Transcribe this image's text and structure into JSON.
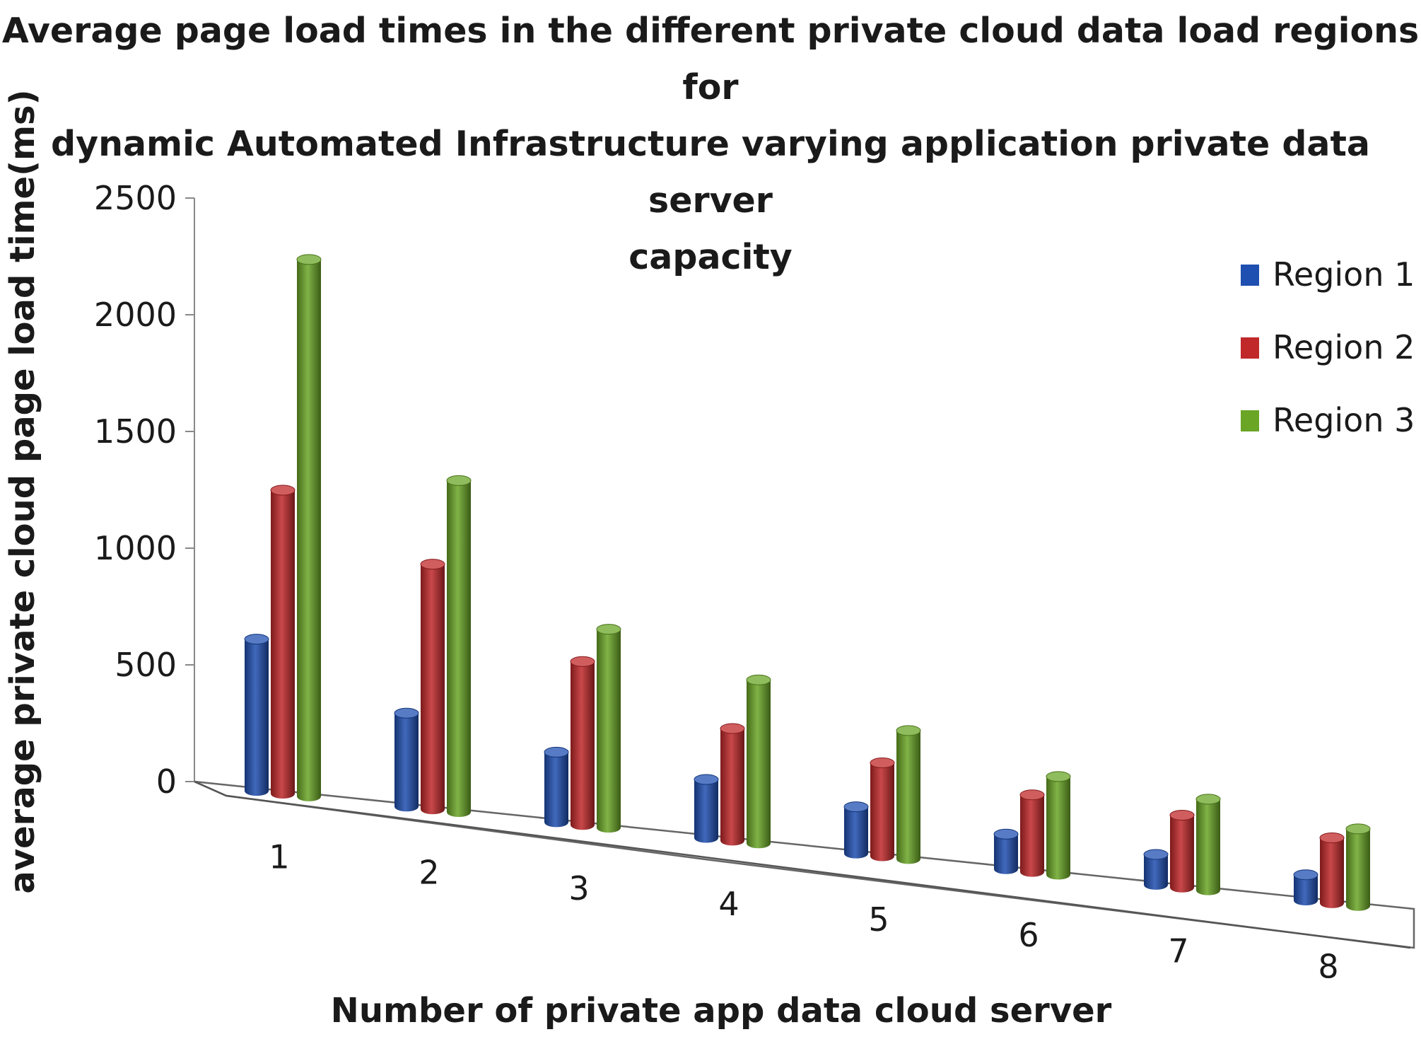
{
  "chart_data": {
    "type": "bar",
    "title_lines": [
      "Average page  load times in the different   private cloud data load regions for",
      "dynamic Automated Infrastructure   varying application private data server",
      "capacity"
    ],
    "xlabel": "Number of private app data cloud server",
    "ylabel": "average private cloud page load time(ms)",
    "categories": [
      "1",
      "2",
      "3",
      "4",
      "5",
      "6",
      "7",
      "8"
    ],
    "ylim": [
      0,
      2500
    ],
    "yticks": [
      "0",
      "500",
      "1000",
      "1500",
      "2000",
      "2500"
    ],
    "series": [
      {
        "name": "Region 1",
        "color": "#1f4fb0",
        "values": [
          650,
          400,
          300,
          250,
          200,
          150,
          130,
          110
        ]
      },
      {
        "name": "Region 2",
        "color": "#c0282a",
        "values": [
          1300,
          1050,
          700,
          480,
          400,
          330,
          310,
          280
        ]
      },
      {
        "name": "Region 3",
        "color": "#6aa526",
        "values": [
          2300,
          1420,
          850,
          700,
          550,
          420,
          390,
          330
        ]
      }
    ],
    "legend_position": "right",
    "style": "3d-cylinder"
  }
}
